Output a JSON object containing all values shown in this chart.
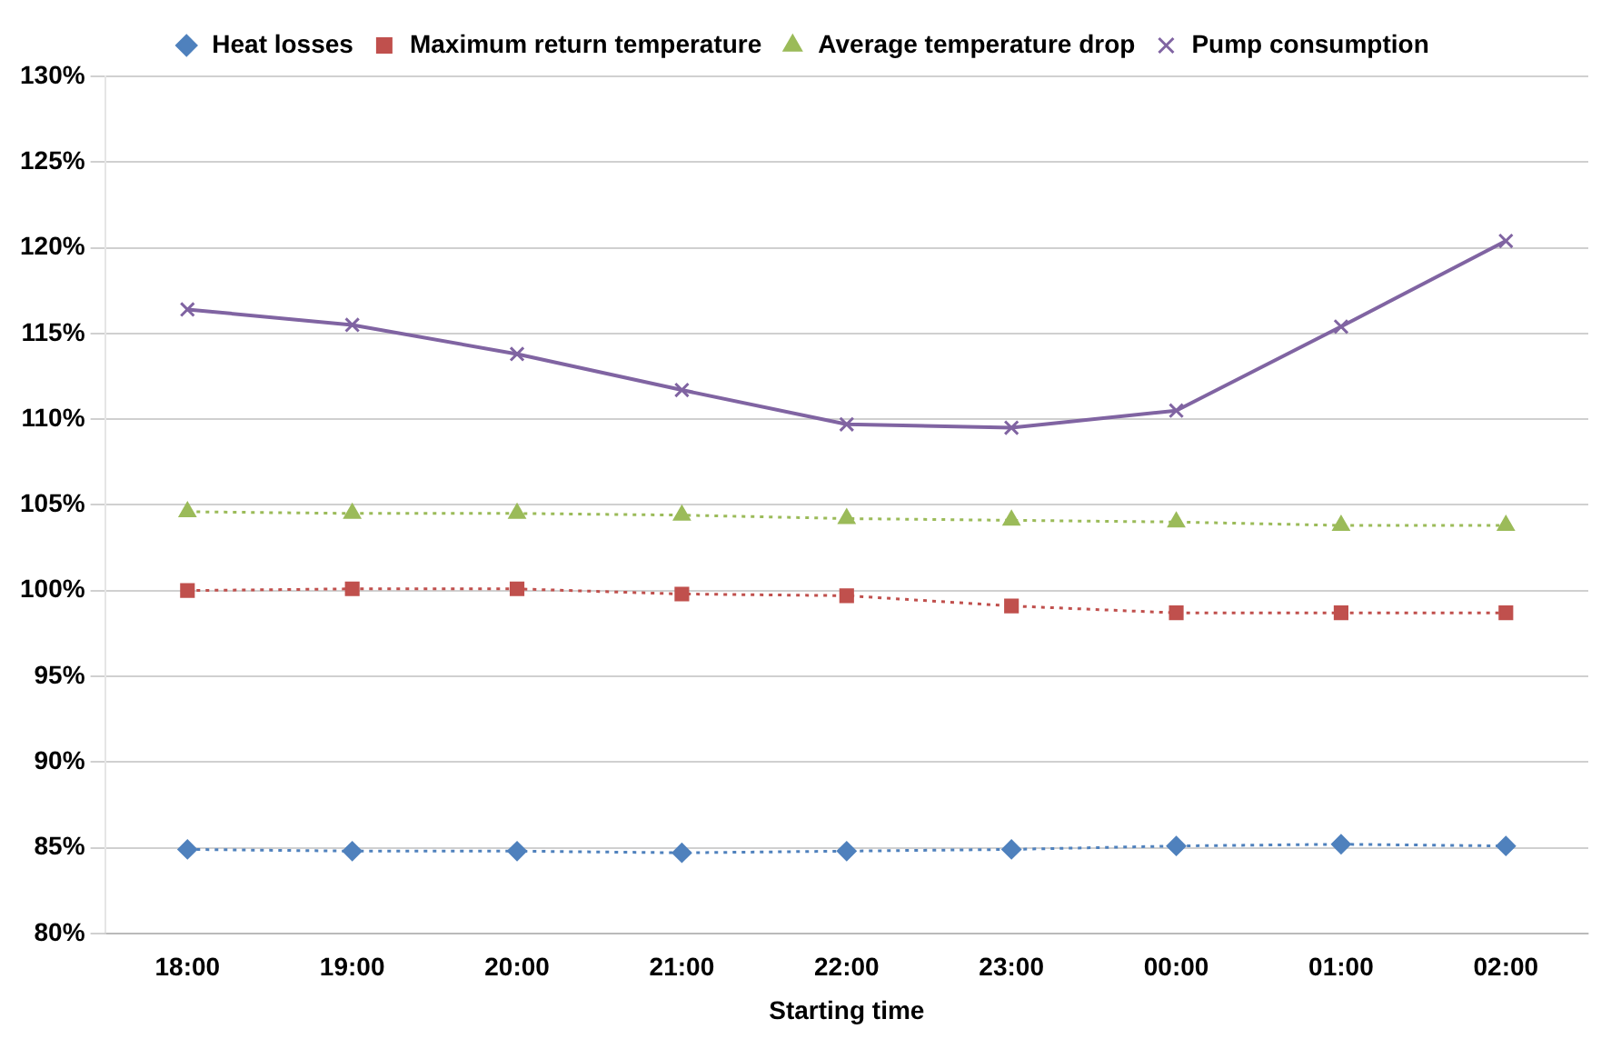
{
  "chart_data": {
    "type": "line",
    "xlabel": "Starting time",
    "categories": [
      "18:00",
      "19:00",
      "20:00",
      "21:00",
      "22:00",
      "23:00",
      "00:00",
      "01:00",
      "02:00"
    ],
    "series": [
      {
        "name": "Heat losses",
        "color": "#4f81bd",
        "marker": "diamond",
        "line_style": "dotted",
        "values": [
          84.9,
          84.8,
          84.8,
          84.7,
          84.8,
          84.9,
          85.1,
          85.2,
          85.1
        ]
      },
      {
        "name": "Maximum return temperature",
        "color": "#c0504d",
        "marker": "square",
        "line_style": "dotted",
        "values": [
          100,
          100.1,
          100.1,
          99.8,
          99.7,
          99.1,
          98.7,
          98.7,
          98.7
        ]
      },
      {
        "name": "Average temperature drop",
        "color": "#9bbb59",
        "marker": "triangle",
        "line_style": "dotted",
        "values": [
          104.6,
          104.5,
          104.5,
          104.4,
          104.2,
          104.1,
          104.0,
          103.8,
          103.8
        ]
      },
      {
        "name": "Pump consumption",
        "color": "#8064a2",
        "marker": "cross",
        "line_style": "solid",
        "values": [
          116.4,
          115.5,
          113.8,
          111.7,
          109.7,
          109.5,
          110.5,
          115.4,
          120.4
        ]
      }
    ],
    "ylim": [
      80,
      130
    ],
    "yticks": [
      {
        "value": 80,
        "label": "80%"
      },
      {
        "value": 85,
        "label": "85%"
      },
      {
        "value": 90,
        "label": "90%"
      },
      {
        "value": 95,
        "label": "95%"
      },
      {
        "value": 100,
        "label": "100%"
      },
      {
        "value": 105,
        "label": "105%"
      },
      {
        "value": 110,
        "label": "110%"
      },
      {
        "value": 115,
        "label": "115%"
      },
      {
        "value": 120,
        "label": "120%"
      },
      {
        "value": 125,
        "label": "125%"
      },
      {
        "value": 130,
        "label": "130%"
      }
    ],
    "grid": "y",
    "legend": "top"
  }
}
